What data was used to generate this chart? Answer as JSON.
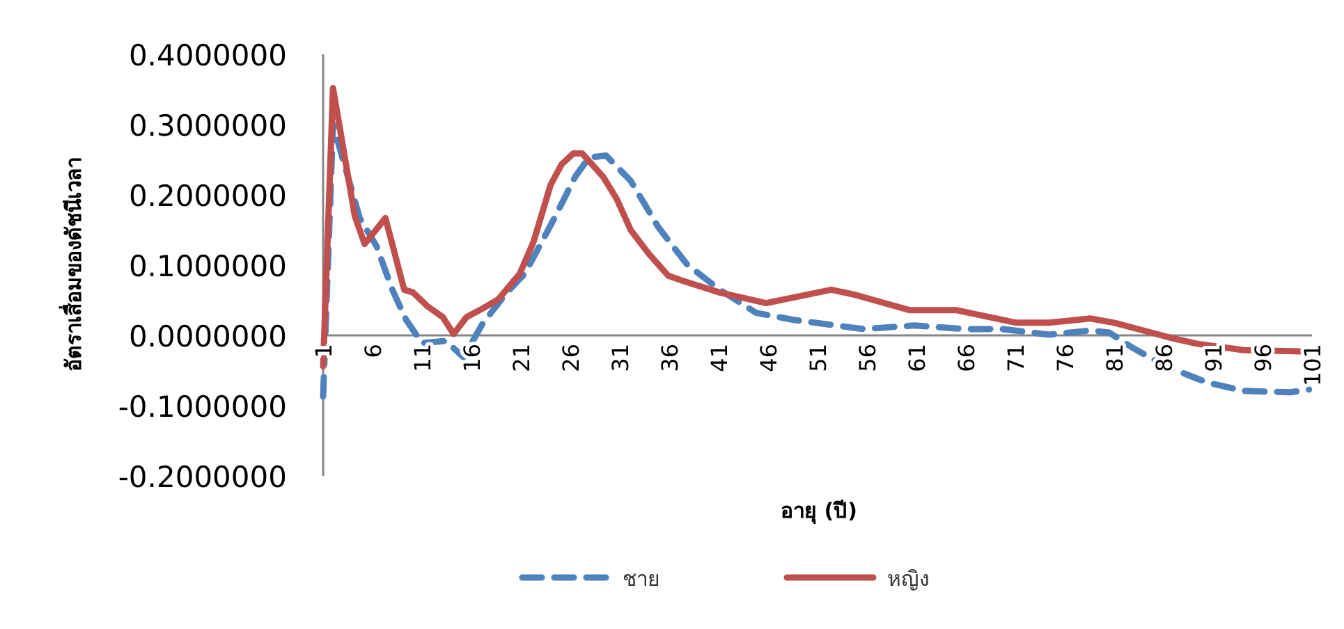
{
  "chart_data": {
    "type": "line",
    "xlabel": "อายุ (ปี)",
    "ylabel": "อัตราเสื่อมของดัชนีเวลา",
    "xlim": [
      1,
      101
    ],
    "xticks": [
      1,
      6,
      11,
      16,
      21,
      26,
      31,
      36,
      41,
      46,
      51,
      56,
      61,
      66,
      71,
      76,
      81,
      86,
      91,
      96,
      101
    ],
    "ylim": [
      -0.2,
      0.4
    ],
    "yticks": [
      {
        "value": -0.2,
        "label": "-0.2000000"
      },
      {
        "value": -0.1,
        "label": "-0.1000000"
      },
      {
        "value": 0,
        "label": "0.0000000"
      },
      {
        "value": 0.1,
        "label": "0.1000000"
      },
      {
        "value": 0.2,
        "label": "0.2000000"
      },
      {
        "value": 0.3,
        "label": "0.3000000"
      },
      {
        "value": 0.4,
        "label": "0.4000000"
      }
    ],
    "legend": "bottom",
    "series": [
      {
        "name": "ชาย",
        "color": "#4f81bd",
        "line_style": "dashed",
        "x": [
          1,
          2,
          4.7,
          6.4,
          8,
          9.4,
          11,
          13.4,
          15.2,
          17.1,
          19.4,
          21.4,
          24.4,
          26.5,
          27.9,
          29.6,
          32.1,
          34.9,
          37.8,
          41.1,
          44.8,
          48.6,
          55.6,
          60.8,
          65.9,
          69.7,
          74.4,
          78.6,
          80.5,
          82.9,
          86.2,
          90.4,
          94.1,
          98.8,
          100.7
        ],
        "values": [
          -0.087,
          0.3,
          0.167,
          0.127,
          0.065,
          0.022,
          -0.011,
          -0.008,
          -0.031,
          0.016,
          0.058,
          0.088,
          0.167,
          0.226,
          0.253,
          0.256,
          0.22,
          0.154,
          0.101,
          0.065,
          0.032,
          0.022,
          0.009,
          0.014,
          0.009,
          0.009,
          0.001,
          0.007,
          0.004,
          -0.018,
          -0.044,
          -0.067,
          -0.079,
          -0.081,
          -0.077
        ]
      },
      {
        "name": "หญิง",
        "color": "#c0504d",
        "line_style": "solid",
        "x": [
          1,
          2,
          4.2,
          5.2,
          7.3,
          9.2,
          10.1,
          11.5,
          13.1,
          14.2,
          15.5,
          17.1,
          18.7,
          20.9,
          22.3,
          24,
          25.1,
          26.3,
          27.2,
          29.3,
          30.7,
          32.1,
          34,
          35.9,
          37.3,
          41.1,
          45.8,
          52.4,
          54.7,
          60.3,
          65,
          71.1,
          74.4,
          78.6,
          81,
          86.6,
          89.4,
          94.1,
          100.7
        ],
        "values": [
          -0.044,
          0.352,
          0.17,
          0.13,
          0.167,
          0.065,
          0.061,
          0.042,
          0.026,
          0.002,
          0.026,
          0.038,
          0.051,
          0.088,
          0.134,
          0.214,
          0.243,
          0.259,
          0.259,
          0.226,
          0.194,
          0.15,
          0.115,
          0.085,
          0.078,
          0.061,
          0.046,
          0.065,
          0.058,
          0.036,
          0.036,
          0.018,
          0.018,
          0.024,
          0.018,
          -0.003,
          -0.012,
          -0.021,
          -0.023
        ]
      }
    ]
  }
}
